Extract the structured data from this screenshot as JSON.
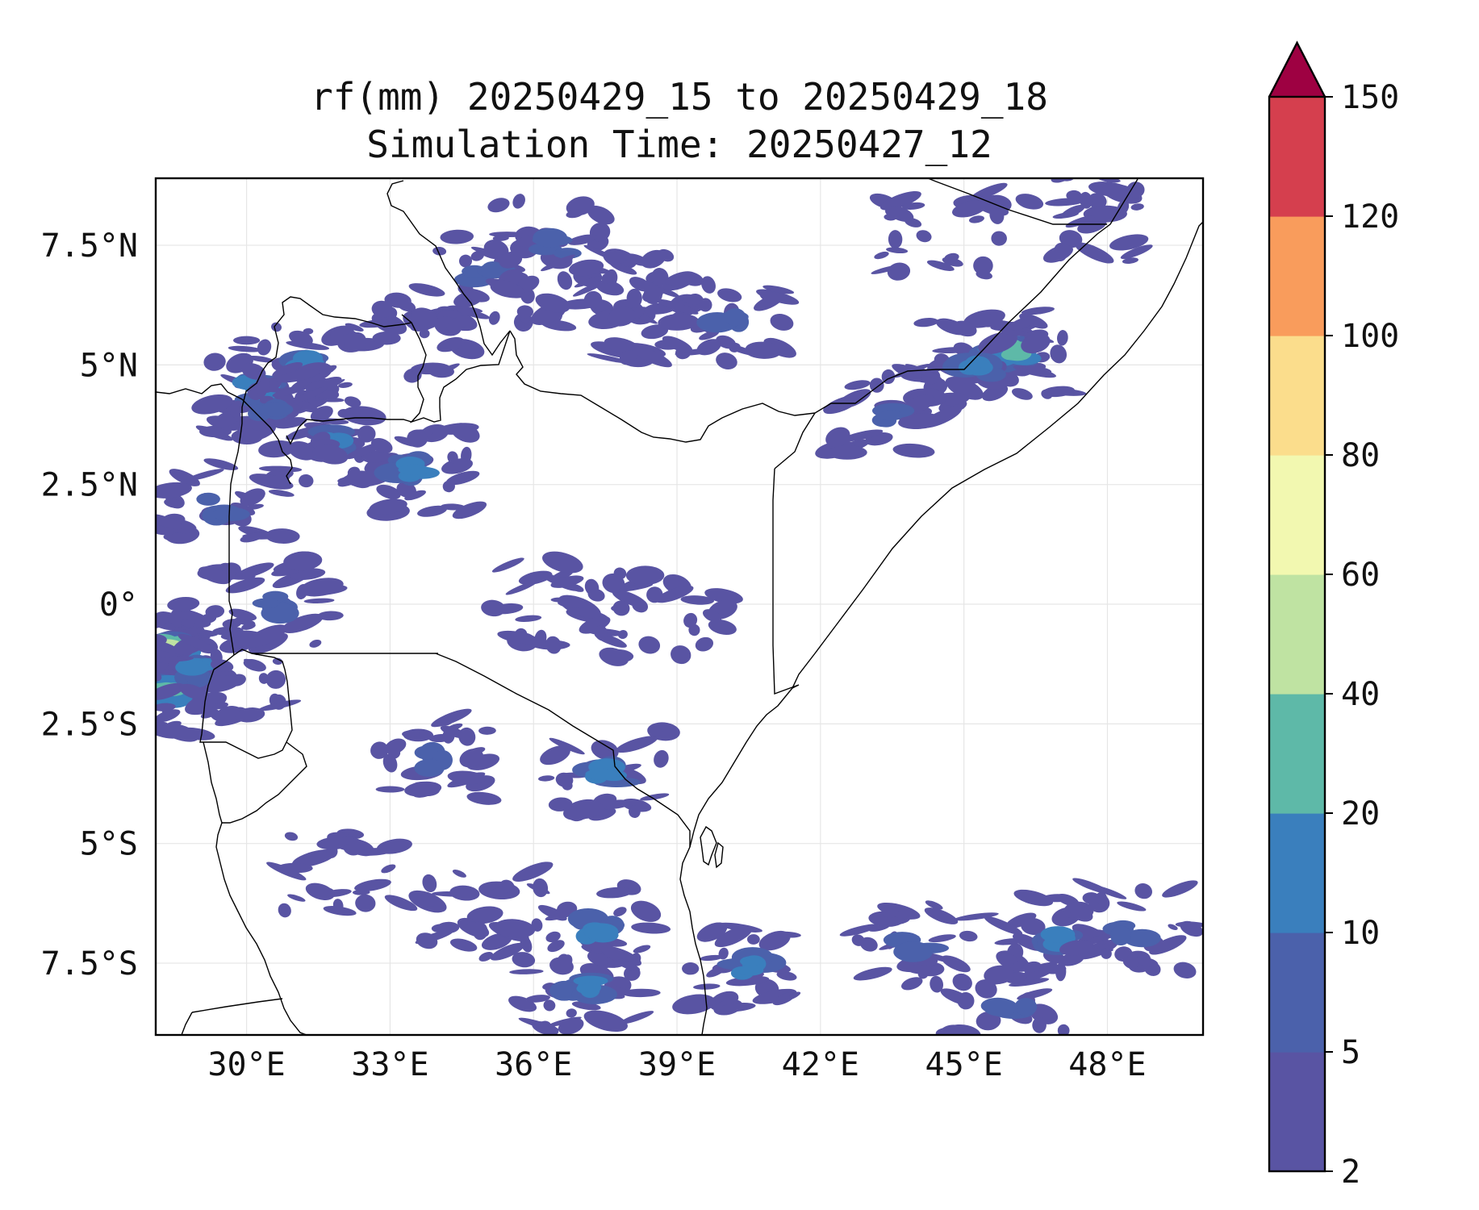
{
  "title": {
    "line1": "rf(mm) 20250429_15 to 20250429_18",
    "line2": "Simulation Time: 20250427_12"
  },
  "map": {
    "extent": {
      "lon_min": 28.1,
      "lon_max": 50.0,
      "lat_min": -9.0,
      "lat_max": 8.9
    },
    "lon_ticks": [
      {
        "value": 30,
        "label": "30°E"
      },
      {
        "value": 33,
        "label": "33°E"
      },
      {
        "value": 36,
        "label": "36°E"
      },
      {
        "value": 39,
        "label": "39°E"
      },
      {
        "value": 42,
        "label": "42°E"
      },
      {
        "value": 45,
        "label": "45°E"
      },
      {
        "value": 48,
        "label": "48°E"
      }
    ],
    "lat_ticks": [
      {
        "value": 7.5,
        "label": "7.5°N"
      },
      {
        "value": 5,
        "label": "5°N"
      },
      {
        "value": 2.5,
        "label": "2.5°N"
      },
      {
        "value": 0,
        "label": "0°"
      },
      {
        "value": -2.5,
        "label": "2.5°S"
      },
      {
        "value": -5,
        "label": "5°S"
      },
      {
        "value": -7.5,
        "label": "7.5°S"
      }
    ],
    "grid": true,
    "colors": {
      "border": "#000000",
      "grid": "#e6e6e6",
      "frame": "#000000"
    }
  },
  "colorbar": {
    "levels": [
      "2",
      "5",
      "10",
      "20",
      "40",
      "60",
      "80",
      "100",
      "120",
      "150"
    ],
    "colors": [
      "#5954a3",
      "#4b61ab",
      "#3a7fbd",
      "#5eb9a8",
      "#bfe3a2",
      "#f2f8b0",
      "#fbdd8c",
      "#f99c5c",
      "#d53f4e"
    ],
    "extend_color": "#9e0142",
    "extend": "max"
  },
  "chart_data": {
    "type": "heatmap",
    "variable": "rf(mm)",
    "title": "rf(mm) 20250429_15 to 20250429_18",
    "subtitle": "Simulation Time: 20250427_12",
    "xlim": [
      28.1,
      50.0
    ],
    "ylim": [
      -9.0,
      8.9
    ],
    "levels": [
      2,
      5,
      10,
      20,
      40,
      60,
      80,
      100,
      120,
      150
    ],
    "rain_cells": [
      {
        "lon": 28.4,
        "lat": -0.9,
        "max_mm": 60
      },
      {
        "lon": 28.4,
        "lat": -1.8,
        "max_mm": 40
      },
      {
        "lon": 29.0,
        "lat": -1.3,
        "max_mm": 20
      },
      {
        "lon": 30.2,
        "lat": 4.5,
        "max_mm": 20
      },
      {
        "lon": 31.2,
        "lat": 5.0,
        "max_mm": 20
      },
      {
        "lon": 31.8,
        "lat": 3.4,
        "max_mm": 20
      },
      {
        "lon": 33.5,
        "lat": 2.8,
        "max_mm": 20
      },
      {
        "lon": 30.5,
        "lat": 4.0,
        "max_mm": 10
      },
      {
        "lon": 29.5,
        "lat": 2.0,
        "max_mm": 10
      },
      {
        "lon": 30.5,
        "lat": 0.0,
        "max_mm": 10
      },
      {
        "lon": 29.5,
        "lat": -1.5,
        "max_mm": 5
      },
      {
        "lon": 33.5,
        "lat": 5.5,
        "max_mm": 5
      },
      {
        "lon": 35.0,
        "lat": 6.8,
        "max_mm": 10
      },
      {
        "lon": 36.5,
        "lat": 7.5,
        "max_mm": 10
      },
      {
        "lon": 37.5,
        "lat": 6.5,
        "max_mm": 5
      },
      {
        "lon": 38.5,
        "lat": 6.0,
        "max_mm": 5
      },
      {
        "lon": 40.0,
        "lat": 6.0,
        "max_mm": 10
      },
      {
        "lon": 46.0,
        "lat": 5.3,
        "max_mm": 40
      },
      {
        "lon": 45.3,
        "lat": 5.0,
        "max_mm": 20
      },
      {
        "lon": 43.5,
        "lat": 4.0,
        "max_mm": 10
      },
      {
        "lon": 44.5,
        "lat": 7.8,
        "max_mm": 5
      },
      {
        "lon": 47.5,
        "lat": 8.1,
        "max_mm": 5
      },
      {
        "lon": 38.8,
        "lat": -0.2,
        "max_mm": 5
      },
      {
        "lon": 36.3,
        "lat": 0.0,
        "max_mm": 5
      },
      {
        "lon": 37.5,
        "lat": -3.5,
        "max_mm": 20
      },
      {
        "lon": 34.0,
        "lat": -3.3,
        "max_mm": 10
      },
      {
        "lon": 37.3,
        "lat": -6.8,
        "max_mm": 20
      },
      {
        "lon": 37.0,
        "lat": -8.0,
        "max_mm": 20
      },
      {
        "lon": 40.5,
        "lat": -7.6,
        "max_mm": 20
      },
      {
        "lon": 47.0,
        "lat": -7.0,
        "max_mm": 20
      },
      {
        "lon": 48.5,
        "lat": -6.8,
        "max_mm": 10
      },
      {
        "lon": 44.0,
        "lat": -7.2,
        "max_mm": 10
      },
      {
        "lon": 46.0,
        "lat": -8.5,
        "max_mm": 10
      },
      {
        "lon": 32.0,
        "lat": -5.5,
        "max_mm": 5
      },
      {
        "lon": 35.0,
        "lat": -6.5,
        "max_mm": 5
      }
    ]
  }
}
